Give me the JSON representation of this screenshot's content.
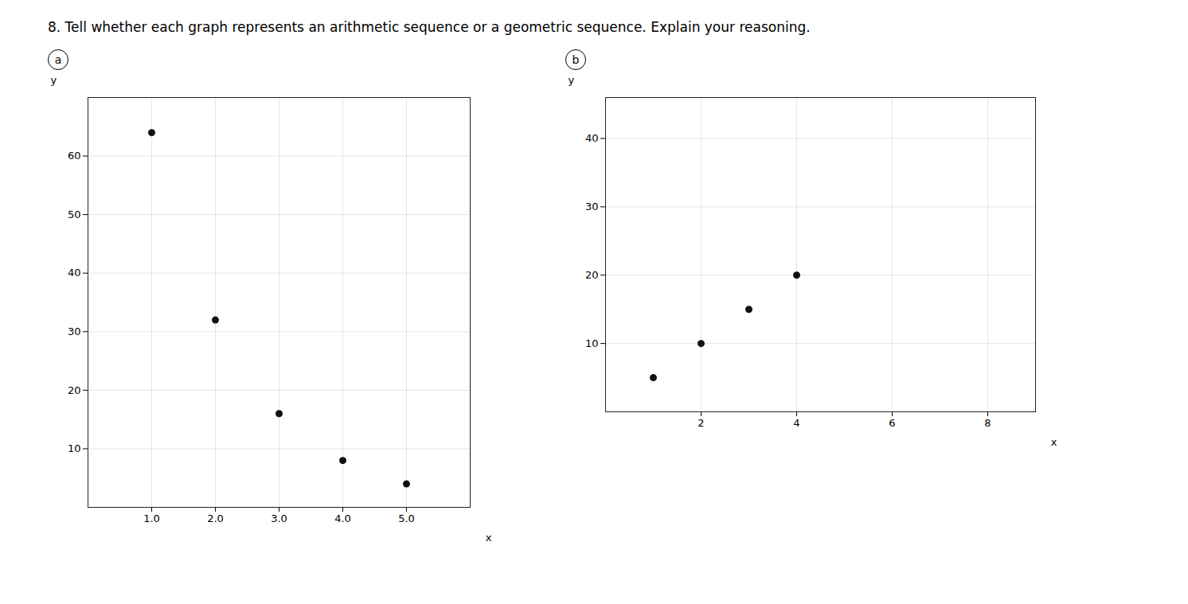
{
  "title": "8. Tell whether each graph represents an arithmetic sequence or a geometric sequence. Explain your reasoning.",
  "chart_data": [
    {
      "type": "scatter",
      "title": "a",
      "xlabel": "x",
      "ylabel": "y",
      "x": [
        1,
        2,
        3,
        4,
        5
      ],
      "values": [
        64,
        32,
        16,
        8,
        4
      ],
      "color": "#111111",
      "xlim": [
        0,
        6.0
      ],
      "ylim": [
        0,
        70
      ],
      "xticks": [
        1,
        2,
        3,
        4,
        5
      ],
      "yticks": [
        10,
        20,
        30,
        40,
        50,
        60
      ],
      "grid": true
    },
    {
      "type": "scatter",
      "title": "b",
      "xlabel": "x",
      "ylabel": "y",
      "x": [
        1,
        2,
        3,
        4
      ],
      "values": [
        5,
        10,
        15,
        20
      ],
      "color": "#111111",
      "xlim": [
        0,
        9.0
      ],
      "ylim": [
        0,
        46
      ],
      "xticks": [
        2,
        4,
        6,
        8
      ],
      "yticks": [
        10,
        20,
        30,
        40
      ],
      "grid": true
    }
  ]
}
